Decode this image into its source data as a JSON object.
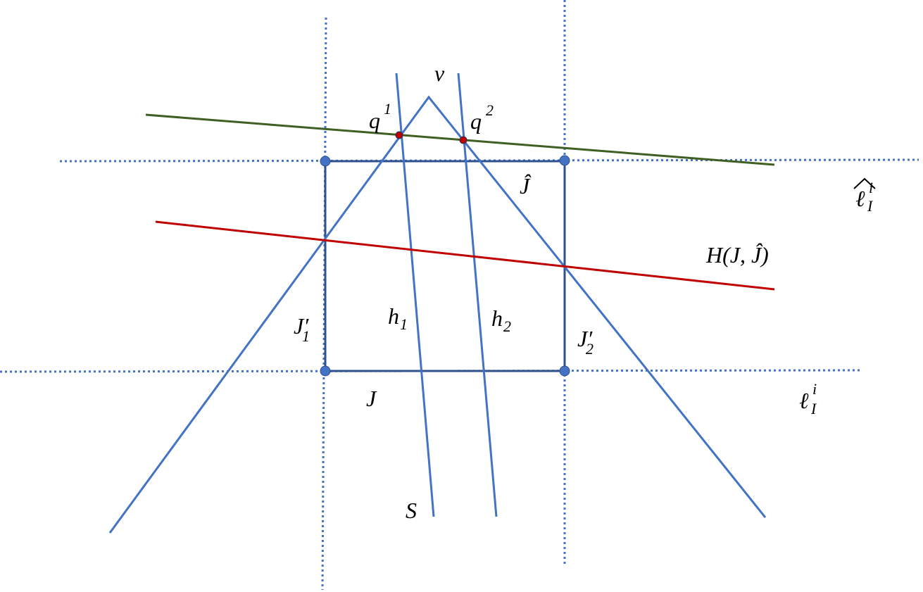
{
  "labels": {
    "v": "v",
    "q1": {
      "base": "q",
      "sup": "1"
    },
    "q2": {
      "base": "q",
      "sup": "2"
    },
    "j_hat": "Ĵ",
    "ell_hat": {
      "base": "ℓ",
      "sup": "i",
      "sub": "I"
    },
    "h_of_j": "H(J, Ĵ)",
    "h1": {
      "base": "h",
      "sub": "1"
    },
    "h2": {
      "base": "h",
      "sub": "2"
    },
    "j1_prime": {
      "base": "J′",
      "sub": "1"
    },
    "j2_prime": {
      "base": "J′",
      "sub": "2"
    },
    "j": "J",
    "ell": {
      "base": "ℓ",
      "sup": "i",
      "sub": "I"
    },
    "s": "S"
  }
}
